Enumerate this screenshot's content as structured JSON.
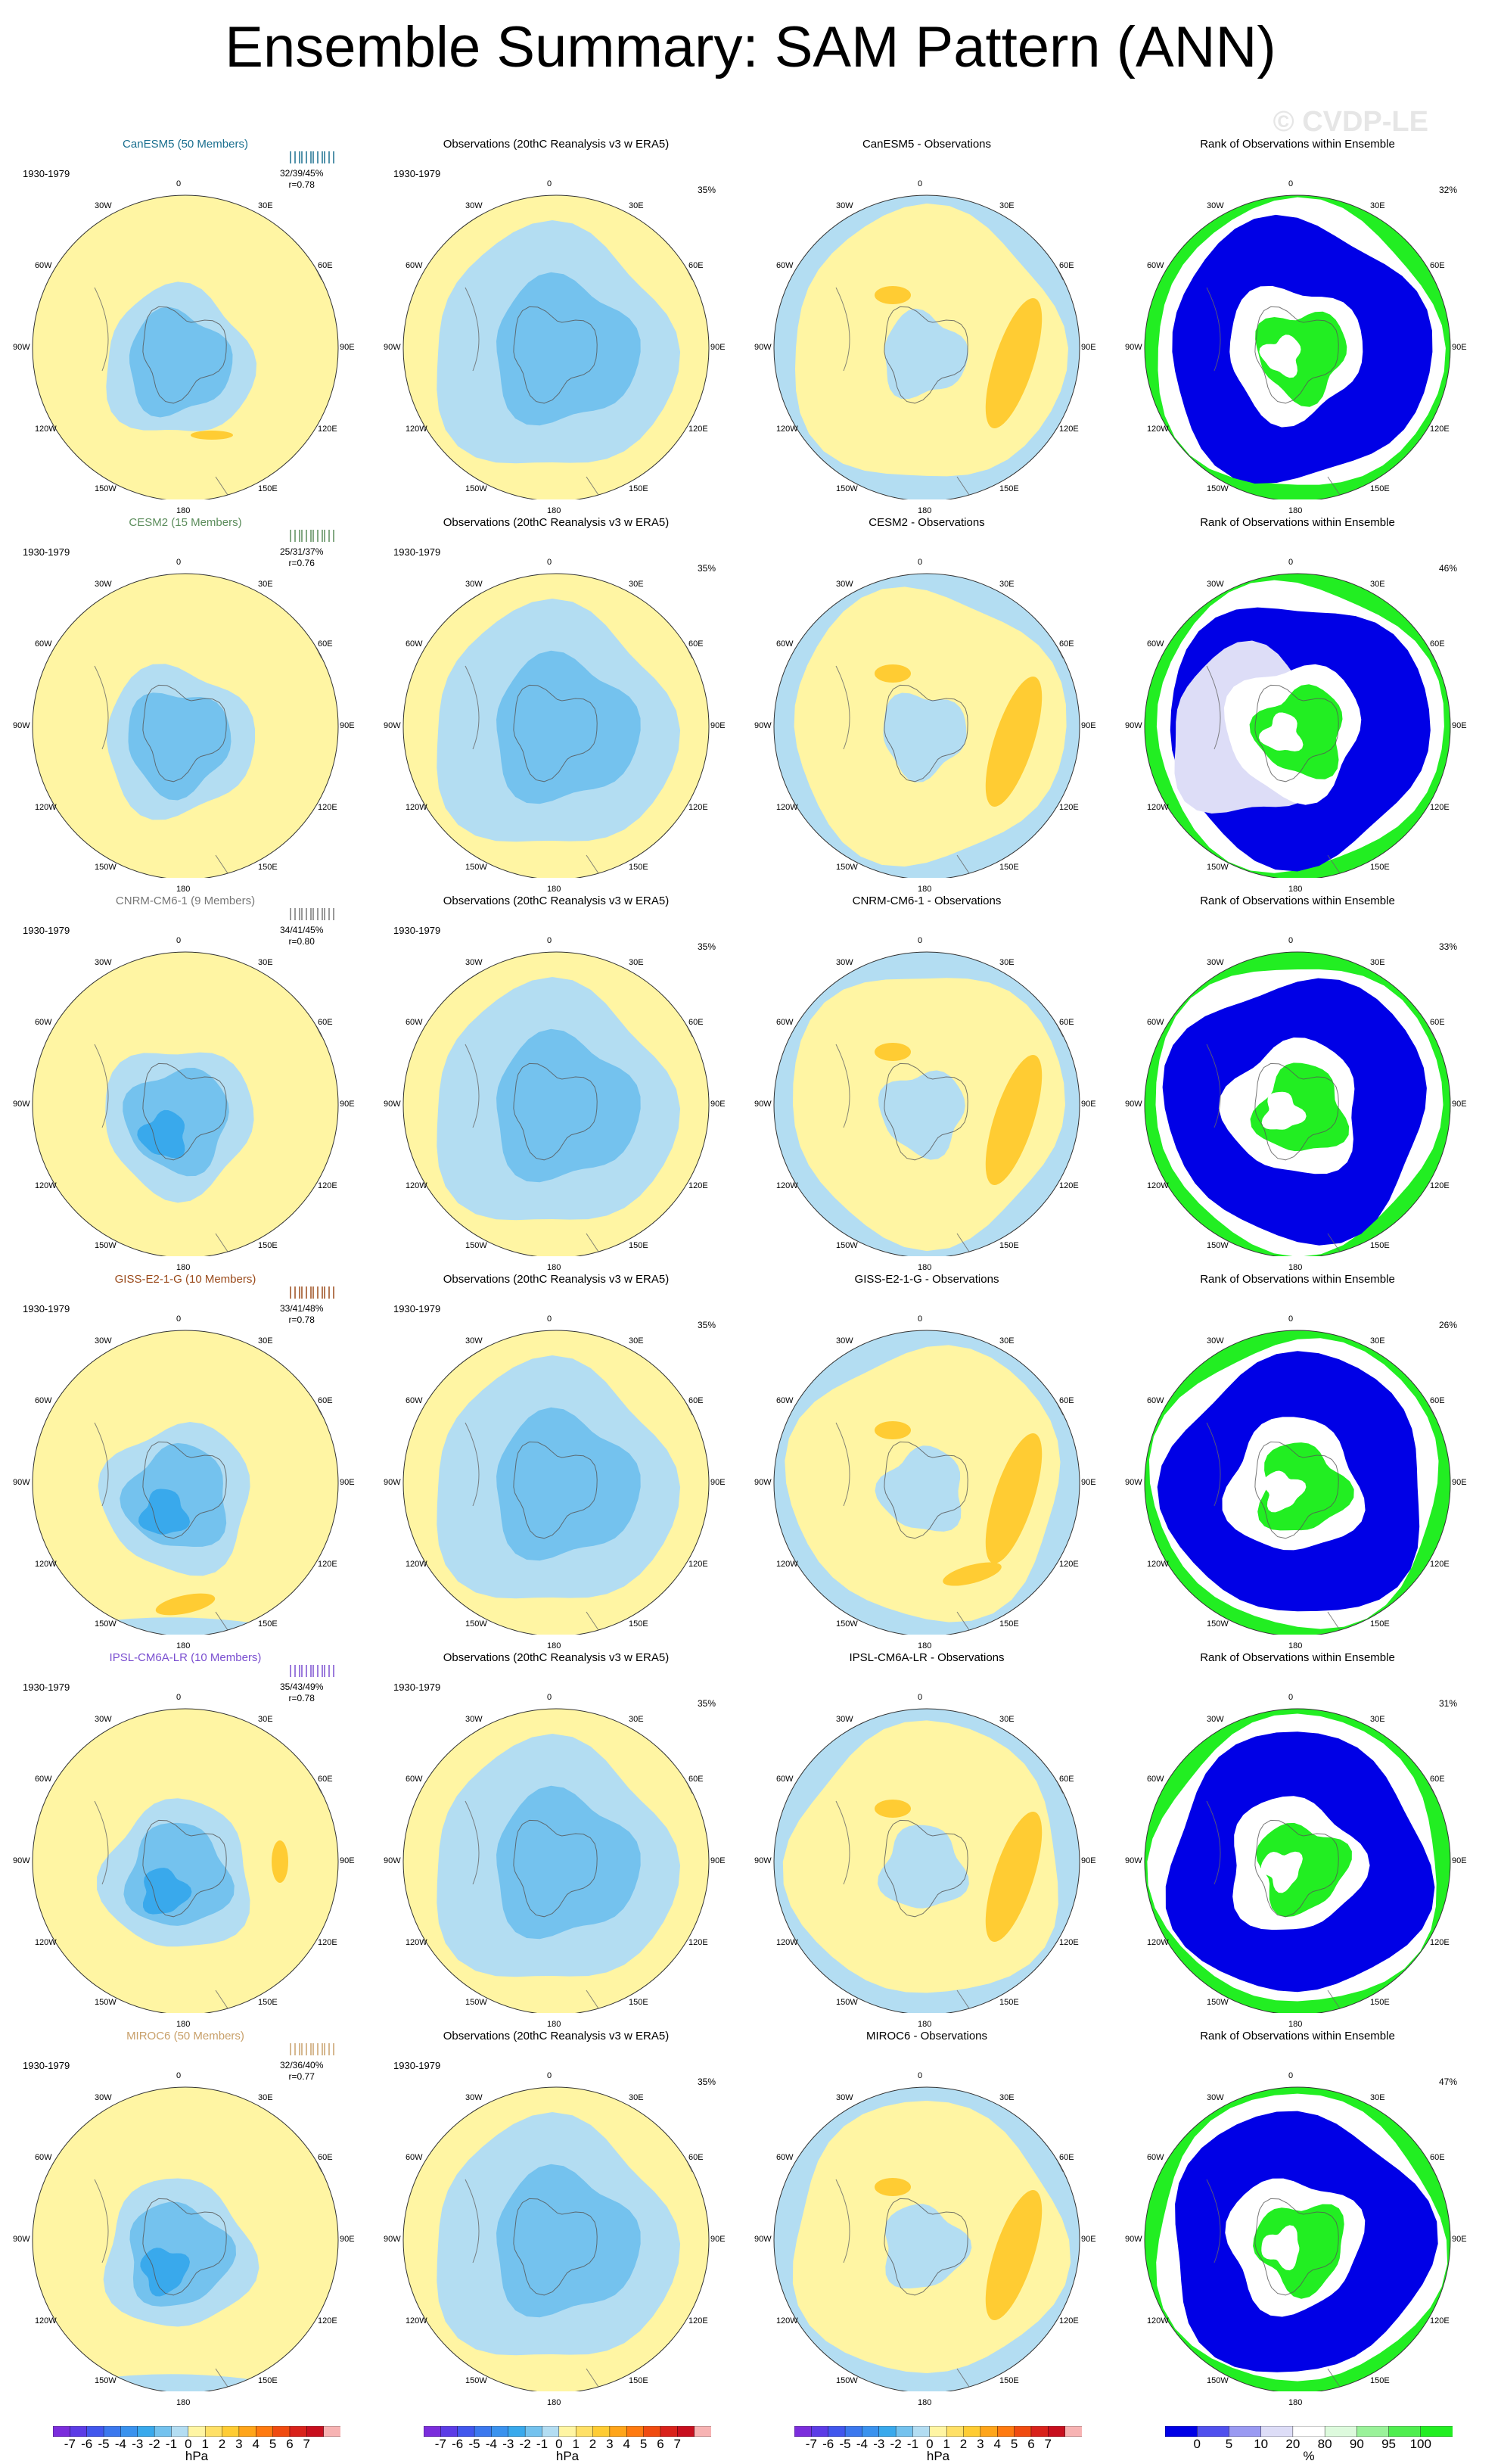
{
  "title": "Ensemble Summary: SAM Pattern (ANN)",
  "watermark": "© CVDP-LE",
  "longitude_labels": [
    "0",
    "30E",
    "60E",
    "90E",
    "120E",
    "150E",
    "180",
    "150W",
    "120W",
    "90W",
    "60W",
    "30W"
  ],
  "obs_title": "Observations (20thC Reanalysis v3 w ERA5)",
  "period": "1930-1979",
  "rank_title": "Rank of Observations within Ensemble",
  "obs_percent": "35%",
  "colors": {
    "yellow": "#fff5a3",
    "orange": "#ffcc33",
    "lightblue": "#b3ddf2",
    "midblue": "#74c2ee",
    "deepblue": "#39a9ec",
    "rank_blue": "#0000e6",
    "rank_green": "#22ee22",
    "rank_lightgreen": "#ddfadd",
    "rank_lavender": "#ddddf7"
  },
  "rows": [
    {
      "model_title": "CanESM5 (50 Members)",
      "model_color": "#1a6f8f",
      "stats": "32/39/45%",
      "r": "r=0.78",
      "diff_title": "CanESM5 - Observations",
      "rank_pct": "32%"
    },
    {
      "model_title": "CESM2 (15 Members)",
      "model_color": "#5b8c5b",
      "stats": "25/31/37%",
      "r": "r=0.76",
      "diff_title": "CESM2 - Observations",
      "rank_pct": "46%"
    },
    {
      "model_title": "CNRM-CM6-1 (9 Members)",
      "model_color": "#777777",
      "stats": "34/41/45%",
      "r": "r=0.80",
      "diff_title": "CNRM-CM6-1 - Observations",
      "rank_pct": "33%"
    },
    {
      "model_title": "GISS-E2-1-G (10 Members)",
      "model_color": "#9a4a1b",
      "stats": "33/41/48%",
      "r": "r=0.78",
      "diff_title": "GISS-E2-1-G - Observations",
      "rank_pct": "26%"
    },
    {
      "model_title": "IPSL-CM6A-LR (10 Members)",
      "model_color": "#7a4fd0",
      "stats": "35/43/49%",
      "r": "r=0.78",
      "diff_title": "IPSL-CM6A-LR - Observations",
      "rank_pct": "31%"
    },
    {
      "model_title": "MIROC6 (50 Members)",
      "model_color": "#c8a06a",
      "stats": "32/36/40%",
      "r": "r=0.77",
      "diff_title": "MIROC6 - Observations",
      "rank_pct": "47%"
    }
  ],
  "chart_data": [
    {
      "type": "heatmap",
      "title": "SAM Pattern colorbar",
      "xlabel": "hPa",
      "tick_labels": [
        "-7",
        "-6",
        "-5",
        "-4",
        "-3",
        "-2",
        "-1",
        "0",
        "1",
        "2",
        "3",
        "4",
        "5",
        "6",
        "7"
      ],
      "colors": [
        "#7b2ddc",
        "#5c3ce6",
        "#4157ed",
        "#3b78ee",
        "#3a92ee",
        "#39a9ec",
        "#74c2ee",
        "#b3ddf2",
        "#fff5a3",
        "#ffe066",
        "#ffcc33",
        "#ffa51a",
        "#ff7a10",
        "#f04b10",
        "#d9221b",
        "#c80f1e",
        "#f7b3b3"
      ]
    },
    {
      "type": "heatmap",
      "title": "Rank colorbar",
      "xlabel": "%",
      "tick_labels": [
        "0",
        "5",
        "10",
        "20",
        "80",
        "90",
        "95",
        "100"
      ],
      "colors": [
        "#0000e6",
        "#5050ee",
        "#9a9af2",
        "#ddddf7",
        "#ffffff",
        "#ddfadd",
        "#9af29a",
        "#50ee50",
        "#22ee22"
      ]
    }
  ]
}
